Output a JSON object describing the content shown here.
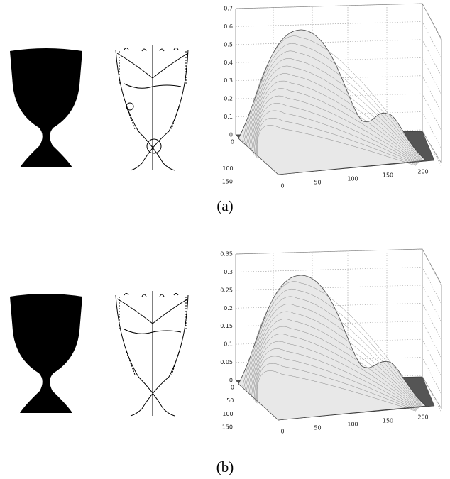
{
  "figures": [
    {
      "caption": "(a)",
      "plot": {
        "zticks": [
          0,
          0.1,
          0.2,
          0.3,
          0.4,
          0.5,
          0.6,
          0.7
        ],
        "yticks": [
          0,
          100,
          150
        ],
        "xticks": [
          0,
          50,
          100,
          150,
          200
        ]
      }
    },
    {
      "caption": "(b)",
      "plot": {
        "zticks": [
          0,
          0.05,
          0.1,
          0.15,
          0.2,
          0.25,
          0.3,
          0.35
        ],
        "yticks": [
          0,
          50,
          100,
          150
        ],
        "xticks": [
          0,
          50,
          100,
          150,
          200
        ]
      }
    }
  ]
}
